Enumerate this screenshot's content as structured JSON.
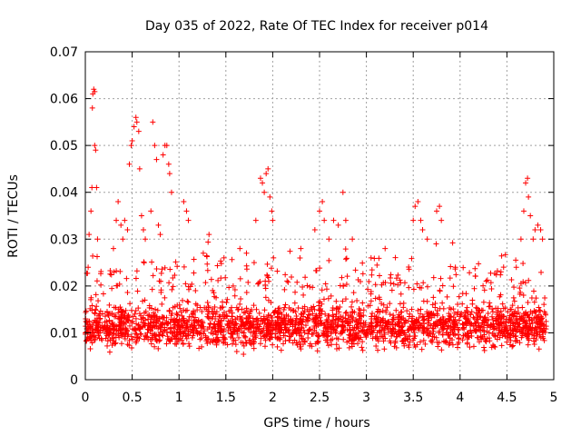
{
  "chart_data": {
    "type": "scatter",
    "title": "Day 035 of 2022, Rate Of TEC Index for receiver p014",
    "xlabel": "GPS time / hours",
    "ylabel": "ROTI / TECUs",
    "xlim": [
      0,
      5
    ],
    "ylim": [
      0,
      0.07
    ],
    "xticks": [
      "0",
      "0.5",
      "1",
      "1.5",
      "2",
      "2.5",
      "3",
      "3.5",
      "4",
      "4.5",
      "5"
    ],
    "yticks": [
      "0",
      "0.01",
      "0.02",
      "0.03",
      "0.04",
      "0.05",
      "0.06",
      "0.07"
    ],
    "grid": true,
    "marker": "+",
    "color": "#ff0000",
    "data_range_hours": [
      0,
      4.92
    ],
    "baseline_band": [
      0.005,
      0.02
    ],
    "spikes": [
      {
        "x": 0.03,
        "y": 0.024
      },
      {
        "x": 0.04,
        "y": 0.031
      },
      {
        "x": 0.06,
        "y": 0.036
      },
      {
        "x": 0.07,
        "y": 0.041
      },
      {
        "x": 0.075,
        "y": 0.058
      },
      {
        "x": 0.08,
        "y": 0.061
      },
      {
        "x": 0.09,
        "y": 0.062
      },
      {
        "x": 0.1,
        "y": 0.0615
      },
      {
        "x": 0.1,
        "y": 0.05
      },
      {
        "x": 0.11,
        "y": 0.049
      },
      {
        "x": 0.12,
        "y": 0.041
      },
      {
        "x": 0.13,
        "y": 0.03
      },
      {
        "x": 0.3,
        "y": 0.028
      },
      {
        "x": 0.33,
        "y": 0.034
      },
      {
        "x": 0.35,
        "y": 0.038
      },
      {
        "x": 0.38,
        "y": 0.033
      },
      {
        "x": 0.4,
        "y": 0.03
      },
      {
        "x": 0.42,
        "y": 0.034
      },
      {
        "x": 0.45,
        "y": 0.032
      },
      {
        "x": 0.47,
        "y": 0.046
      },
      {
        "x": 0.49,
        "y": 0.05
      },
      {
        "x": 0.5,
        "y": 0.051
      },
      {
        "x": 0.52,
        "y": 0.054
      },
      {
        "x": 0.54,
        "y": 0.056
      },
      {
        "x": 0.55,
        "y": 0.055
      },
      {
        "x": 0.57,
        "y": 0.053
      },
      {
        "x": 0.58,
        "y": 0.045
      },
      {
        "x": 0.6,
        "y": 0.035
      },
      {
        "x": 0.62,
        "y": 0.032
      },
      {
        "x": 0.64,
        "y": 0.03
      },
      {
        "x": 0.7,
        "y": 0.036
      },
      {
        "x": 0.72,
        "y": 0.055
      },
      {
        "x": 0.74,
        "y": 0.05
      },
      {
        "x": 0.76,
        "y": 0.047
      },
      {
        "x": 0.78,
        "y": 0.033
      },
      {
        "x": 0.8,
        "y": 0.031
      },
      {
        "x": 0.83,
        "y": 0.048
      },
      {
        "x": 0.85,
        "y": 0.05
      },
      {
        "x": 0.87,
        "y": 0.05
      },
      {
        "x": 0.89,
        "y": 0.046
      },
      {
        "x": 0.9,
        "y": 0.044
      },
      {
        "x": 0.92,
        "y": 0.04
      },
      {
        "x": 1.05,
        "y": 0.038
      },
      {
        "x": 1.08,
        "y": 0.036
      },
      {
        "x": 1.1,
        "y": 0.034
      },
      {
        "x": 1.32,
        "y": 0.031
      },
      {
        "x": 1.48,
        "y": 0.026
      },
      {
        "x": 1.65,
        "y": 0.028
      },
      {
        "x": 1.72,
        "y": 0.027
      },
      {
        "x": 1.82,
        "y": 0.034
      },
      {
        "x": 1.87,
        "y": 0.043
      },
      {
        "x": 1.89,
        "y": 0.042
      },
      {
        "x": 1.91,
        "y": 0.04
      },
      {
        "x": 1.93,
        "y": 0.044
      },
      {
        "x": 1.95,
        "y": 0.045
      },
      {
        "x": 1.97,
        "y": 0.039
      },
      {
        "x": 1.99,
        "y": 0.036
      },
      {
        "x": 2.0,
        "y": 0.034
      },
      {
        "x": 2.3,
        "y": 0.028
      },
      {
        "x": 2.45,
        "y": 0.032
      },
      {
        "x": 2.5,
        "y": 0.036
      },
      {
        "x": 2.53,
        "y": 0.038
      },
      {
        "x": 2.55,
        "y": 0.034
      },
      {
        "x": 2.6,
        "y": 0.03
      },
      {
        "x": 2.65,
        "y": 0.034
      },
      {
        "x": 2.7,
        "y": 0.033
      },
      {
        "x": 2.75,
        "y": 0.04
      },
      {
        "x": 2.78,
        "y": 0.034
      },
      {
        "x": 2.85,
        "y": 0.03
      },
      {
        "x": 3.05,
        "y": 0.026
      },
      {
        "x": 3.2,
        "y": 0.028
      },
      {
        "x": 3.5,
        "y": 0.034
      },
      {
        "x": 3.52,
        "y": 0.037
      },
      {
        "x": 3.55,
        "y": 0.038
      },
      {
        "x": 3.58,
        "y": 0.034
      },
      {
        "x": 3.6,
        "y": 0.032
      },
      {
        "x": 3.65,
        "y": 0.03
      },
      {
        "x": 3.75,
        "y": 0.036
      },
      {
        "x": 3.78,
        "y": 0.037
      },
      {
        "x": 3.8,
        "y": 0.034
      },
      {
        "x": 3.95,
        "y": 0.024
      },
      {
        "x": 4.6,
        "y": 0.024
      },
      {
        "x": 4.65,
        "y": 0.03
      },
      {
        "x": 4.68,
        "y": 0.036
      },
      {
        "x": 4.7,
        "y": 0.042
      },
      {
        "x": 4.72,
        "y": 0.043
      },
      {
        "x": 4.73,
        "y": 0.039
      },
      {
        "x": 4.75,
        "y": 0.035
      },
      {
        "x": 4.78,
        "y": 0.03
      },
      {
        "x": 4.8,
        "y": 0.032
      },
      {
        "x": 4.83,
        "y": 0.033
      },
      {
        "x": 4.86,
        "y": 0.032
      },
      {
        "x": 4.88,
        "y": 0.03
      }
    ]
  }
}
